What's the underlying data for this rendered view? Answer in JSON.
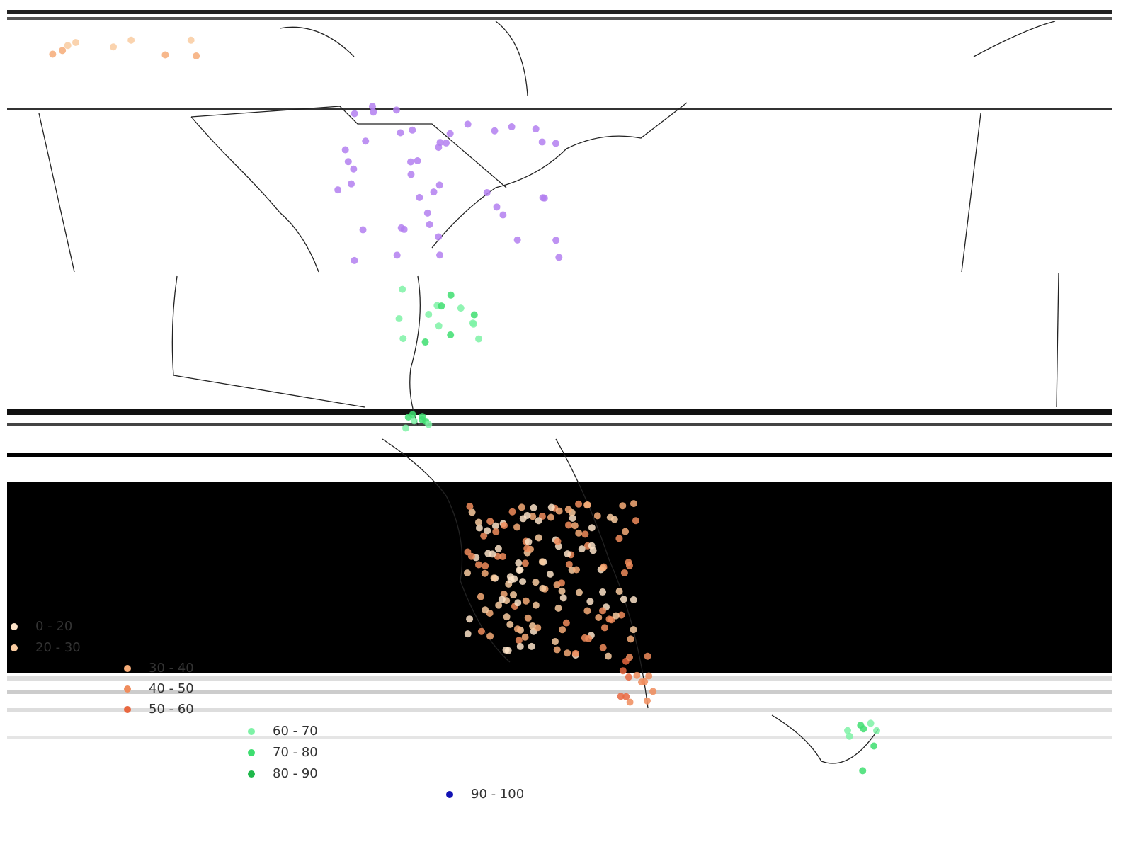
{
  "legend": {
    "items": [
      {
        "label": "0 - 20",
        "color": "#fde3c8"
      },
      {
        "label": "20 - 30",
        "color": "#f9cba0"
      },
      {
        "label": "30 - 40",
        "color": "#f6ac78"
      },
      {
        "label": "40 - 50",
        "color": "#f08c5c"
      },
      {
        "label": "50 - 60",
        "color": "#e8673f"
      },
      {
        "label": "60 - 70",
        "color": "#7ef2a6"
      },
      {
        "label": "70 - 80",
        "color": "#3ede70"
      },
      {
        "label": "80 - 90",
        "color": "#1fb84b"
      },
      {
        "label": "90 - 100",
        "color": "#1212b4"
      }
    ]
  }
}
